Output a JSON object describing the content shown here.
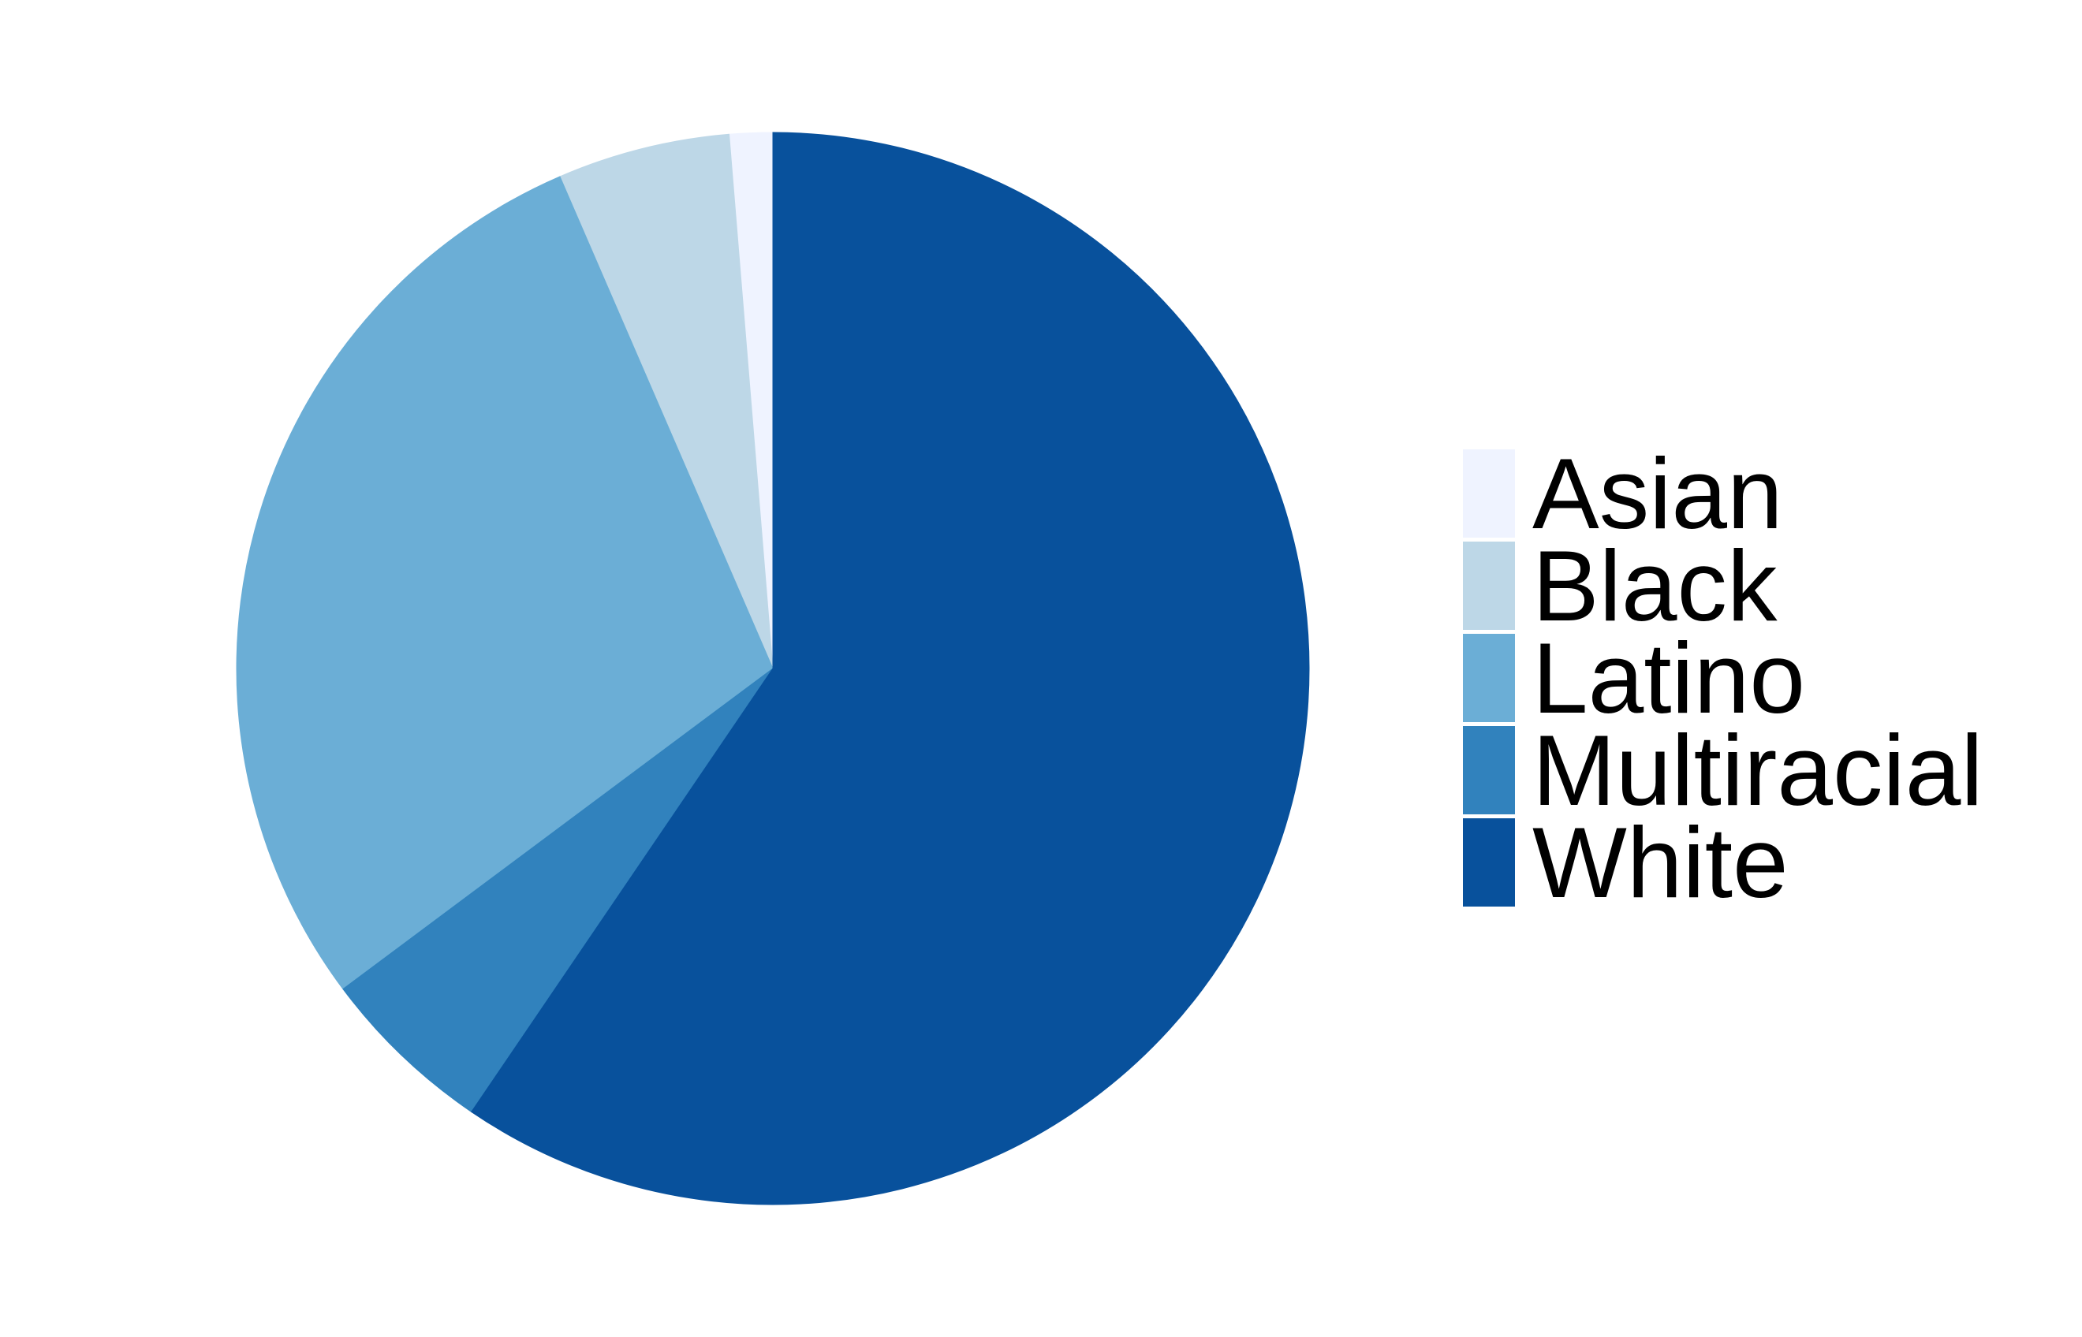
{
  "chart_data": {
    "type": "pie",
    "title": "",
    "categories": [
      "Asian",
      "Black",
      "Latino",
      "Multiracial",
      "White"
    ],
    "values": [
      1.3,
      5.2,
      28.7,
      5.3,
      59.5
    ],
    "unit": "percent",
    "colors": [
      "#eff3ff",
      "#bdd7e7",
      "#6baed6",
      "#3182bd",
      "#08519c"
    ],
    "start_angle": "12 o'clock",
    "direction": "counter-clockwise",
    "legend": {
      "position": "right",
      "entries": [
        "Asian",
        "Black",
        "Latino",
        "Multiracial",
        "White"
      ]
    }
  }
}
